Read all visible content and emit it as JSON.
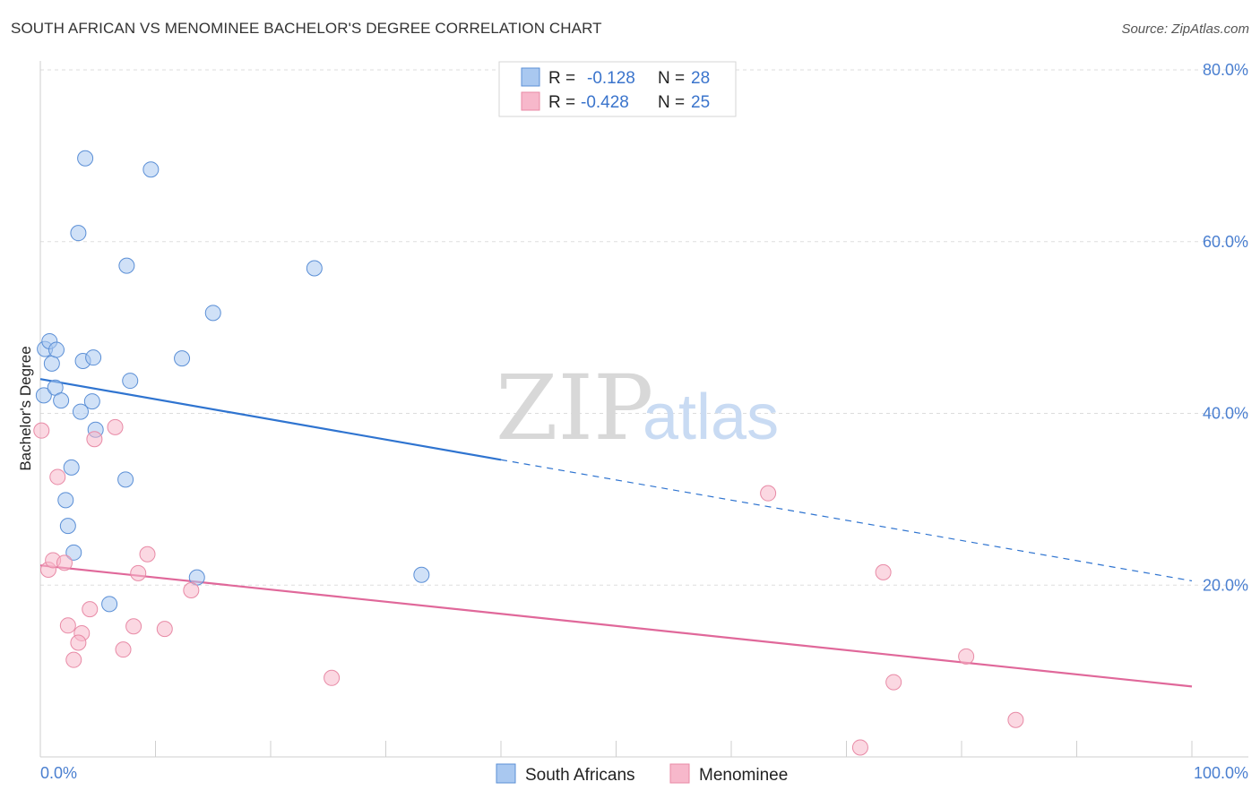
{
  "header": {
    "title": "SOUTH AFRICAN VS MENOMINEE BACHELOR'S DEGREE CORRELATION CHART",
    "source": "Source: ZipAtlas.com"
  },
  "watermark": {
    "zip": "ZIP",
    "atlas": "atlas"
  },
  "legend_top": {
    "rows": [
      {
        "r_label": "R =",
        "r_value": "-0.128",
        "n_label": "N =",
        "n_value": "28",
        "color": "#a9c8f0"
      },
      {
        "r_label": "R =",
        "r_value": "-0.428",
        "n_label": "N =",
        "n_value": "25",
        "color": "#f7b8cb"
      }
    ]
  },
  "legend_bottom": {
    "items": [
      {
        "label": "South Africans",
        "color": "#a9c8f0"
      },
      {
        "label": "Menominee",
        "color": "#f7b8cb"
      }
    ]
  },
  "chart_data": {
    "type": "scatter",
    "ylabel": "Bachelor's Degree",
    "xlim": [
      0,
      100
    ],
    "ylim": [
      0,
      80
    ],
    "x_tick_labels": [
      "0.0%",
      "100.0%"
    ],
    "y_ticks": [
      20,
      40,
      60,
      80
    ],
    "y_tick_labels": [
      "20.0%",
      "40.0%",
      "60.0%",
      "80.0%"
    ],
    "grid": "horizontal dashed",
    "series": [
      {
        "name": "South Africans",
        "color": "#a9c8f0",
        "stroke": "#5b8fd6",
        "trend_color": "#2f74d0",
        "trend": {
          "x0": 0,
          "y0": 44.0,
          "x1": 40,
          "y1": 34.6,
          "dash_x1": 100,
          "dash_y1": 20.5
        },
        "points": [
          [
            0.3,
            42.1
          ],
          [
            0.4,
            47.5
          ],
          [
            0.8,
            48.4
          ],
          [
            1.0,
            45.8
          ],
          [
            1.4,
            47.4
          ],
          [
            1.3,
            43.0
          ],
          [
            1.8,
            41.5
          ],
          [
            3.9,
            69.7
          ],
          [
            3.3,
            61.0
          ],
          [
            9.6,
            68.4
          ],
          [
            7.5,
            57.2
          ],
          [
            23.8,
            56.9
          ],
          [
            15.0,
            51.7
          ],
          [
            3.7,
            46.1
          ],
          [
            4.6,
            46.5
          ],
          [
            12.3,
            46.4
          ],
          [
            7.8,
            43.8
          ],
          [
            4.5,
            41.4
          ],
          [
            3.5,
            40.2
          ],
          [
            4.8,
            38.1
          ],
          [
            2.7,
            33.7
          ],
          [
            7.4,
            32.3
          ],
          [
            2.2,
            29.9
          ],
          [
            2.4,
            26.9
          ],
          [
            2.9,
            23.8
          ],
          [
            13.6,
            20.9
          ],
          [
            6.0,
            17.8
          ],
          [
            33.1,
            21.2
          ]
        ]
      },
      {
        "name": "Menominee",
        "color": "#f7b8cb",
        "stroke": "#e88aa6",
        "trend_color": "#e0689a",
        "trend": {
          "x0": 0,
          "y0": 22.3,
          "x1": 100,
          "y1": 8.2
        },
        "points": [
          [
            0.1,
            38.0
          ],
          [
            6.5,
            38.4
          ],
          [
            4.7,
            37.0
          ],
          [
            1.5,
            32.6
          ],
          [
            63.2,
            30.7
          ],
          [
            0.7,
            21.8
          ],
          [
            1.1,
            22.9
          ],
          [
            2.1,
            22.6
          ],
          [
            9.3,
            23.6
          ],
          [
            8.5,
            21.4
          ],
          [
            73.2,
            21.5
          ],
          [
            13.1,
            19.4
          ],
          [
            4.3,
            17.2
          ],
          [
            2.4,
            15.3
          ],
          [
            8.1,
            15.2
          ],
          [
            10.8,
            14.9
          ],
          [
            3.6,
            14.4
          ],
          [
            3.3,
            13.3
          ],
          [
            7.2,
            12.5
          ],
          [
            2.9,
            11.3
          ],
          [
            80.4,
            11.7
          ],
          [
            25.3,
            9.2
          ],
          [
            74.1,
            8.7
          ],
          [
            84.7,
            4.3
          ],
          [
            71.2,
            1.1
          ]
        ]
      }
    ]
  }
}
